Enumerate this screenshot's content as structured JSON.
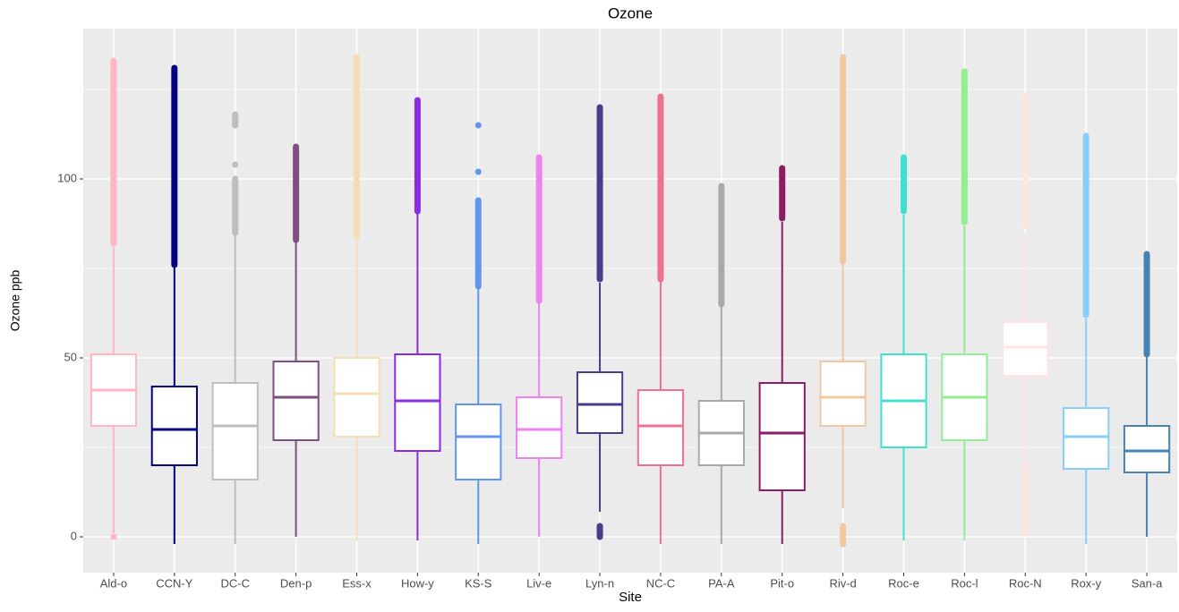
{
  "chart_data": {
    "type": "box",
    "title": "Ozone",
    "x_label": "Site",
    "y_label": "Ozone ppb",
    "categories": [
      "Ald-o",
      "CCN-Y",
      "DC-C",
      "Den-p",
      "Ess-x",
      "How-y",
      "KS-S",
      "Liv-e",
      "Lyn-n",
      "NC-C",
      "PA-A",
      "Pit-o",
      "Riv-d",
      "Roc-e",
      "Roc-l",
      "Roc-N",
      "Rox-y",
      "San-a"
    ],
    "boxes": [
      {
        "low": 1,
        "q1": 31,
        "median": 41,
        "q3": 51,
        "high": 81,
        "outliers": [
          [
            0,
            0
          ],
          [
            82,
            133
          ]
        ],
        "color": "#ffb6c1"
      },
      {
        "low": -2,
        "q1": 20,
        "median": 30,
        "q3": 42,
        "high": 76,
        "outliers": [
          [
            76,
            131
          ]
        ],
        "color": "#000080"
      },
      {
        "low": -2,
        "q1": 16,
        "median": 31,
        "q3": 43,
        "high": 85,
        "outliers": [
          [
            85,
            100
          ],
          [
            104,
            104
          ],
          [
            115,
            118
          ]
        ],
        "color": "#bebebe"
      },
      {
        "low": 0,
        "q1": 27,
        "median": 39,
        "q3": 49,
        "high": 83,
        "outliers": [
          [
            83,
            109
          ]
        ],
        "color": "#7f4f7f"
      },
      {
        "low": -1,
        "q1": 28,
        "median": 40,
        "q3": 50,
        "high": 84,
        "outliers": [
          [
            84,
            134
          ]
        ],
        "color": "#f5deb3"
      },
      {
        "low": -1,
        "q1": 24,
        "median": 38,
        "q3": 51,
        "high": 91,
        "outliers": [
          [
            91,
            122
          ]
        ],
        "color": "#8a2be2"
      },
      {
        "low": -2,
        "q1": 16,
        "median": 28,
        "q3": 37,
        "high": 70,
        "outliers": [
          [
            70,
            94
          ],
          [
            102,
            102
          ],
          [
            115,
            115
          ]
        ],
        "color": "#6495ed"
      },
      {
        "low": 0,
        "q1": 22,
        "median": 30,
        "q3": 39,
        "high": 66,
        "outliers": [
          [
            66,
            106
          ]
        ],
        "color": "#ee82ee"
      },
      {
        "low": 7,
        "q1": 29,
        "median": 37,
        "q3": 46,
        "high": 71,
        "outliers": [
          [
            0,
            3
          ],
          [
            72,
            120
          ]
        ],
        "color": "#483d8b"
      },
      {
        "low": -2,
        "q1": 20,
        "median": 31,
        "q3": 41,
        "high": 72,
        "outliers": [
          [
            72,
            123
          ]
        ],
        "color": "#f07090"
      },
      {
        "low": -2,
        "q1": 20,
        "median": 29,
        "q3": 38,
        "high": 65,
        "outliers": [
          [
            65,
            98
          ]
        ],
        "color": "#a9a9a9"
      },
      {
        "low": -2,
        "q1": 13,
        "median": 29,
        "q3": 43,
        "high": 88,
        "outliers": [
          [
            89,
            103
          ]
        ],
        "color": "#8b1c62"
      },
      {
        "low": 8,
        "q1": 31,
        "median": 39,
        "q3": 49,
        "high": 77,
        "outliers": [
          [
            -2,
            3
          ],
          [
            77,
            134
          ]
        ],
        "color": "#f0c8a0"
      },
      {
        "low": -1,
        "q1": 25,
        "median": 38,
        "q3": 51,
        "high": 90,
        "outliers": [
          [
            91,
            106
          ]
        ],
        "color": "#40e0d0"
      },
      {
        "low": -1,
        "q1": 27,
        "median": 39,
        "q3": 51,
        "high": 87,
        "outliers": [
          [
            88,
            130
          ]
        ],
        "color": "#90ee90"
      },
      {
        "low": 21,
        "q1": 45,
        "median": 53,
        "q3": 60,
        "high": 85,
        "outliers": [
          [
            1,
            20
          ],
          [
            87,
            123
          ]
        ],
        "color": "#ffe4e1"
      },
      {
        "low": -2,
        "q1": 19,
        "median": 28,
        "q3": 36,
        "high": 61,
        "outliers": [
          [
            62,
            112
          ]
        ],
        "color": "#87cefa"
      },
      {
        "low": 0,
        "q1": 18,
        "median": 24,
        "q3": 31,
        "high": 51,
        "outliers": [
          [
            51,
            79
          ]
        ],
        "color": "#4682b4"
      }
    ],
    "ylim": [
      -10,
      142
    ],
    "yticks": [
      0,
      50,
      100
    ],
    "minor_grid": [
      25,
      75,
      125
    ],
    "grid": true
  }
}
